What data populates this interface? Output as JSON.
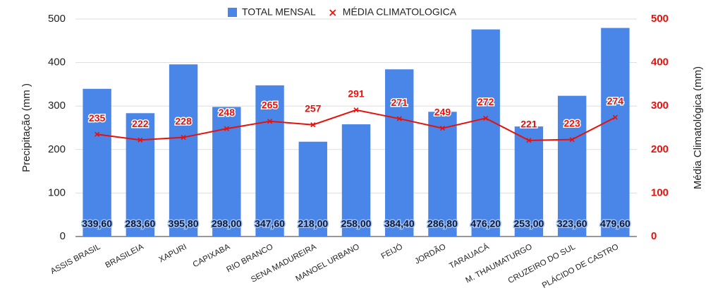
{
  "chart_data": {
    "type": "bar",
    "categories": [
      "ASSIS BRASIL",
      "BRASILEIA",
      "XAPURI",
      "CAPIXABA",
      "RIO BRANCO",
      "SENA MADUREIRA",
      "MANOEL URBANO",
      "FEIJÓ",
      "JORDÃO",
      "TARAUACÁ",
      "M. THAUMATURGO",
      "CRUZEIRO DO SUL",
      "PLÁCIDO DE CASTRO"
    ],
    "series": [
      {
        "name": "TOTAL MENSAL",
        "type": "bar",
        "color": "#4a86e8",
        "values": [
          339.6,
          283.6,
          395.8,
          298.0,
          347.6,
          218.0,
          258.0,
          384.4,
          286.8,
          476.2,
          253.0,
          323.6,
          479.6
        ],
        "value_labels": [
          "339,60",
          "283,60",
          "395,80",
          "298,00",
          "347,60",
          "218,00",
          "258,00",
          "384,40",
          "286,80",
          "476,20",
          "253,00",
          "323,60",
          "479,60"
        ]
      },
      {
        "name": "MÉDIA CLIMATOLOGICA",
        "type": "line",
        "axis": "y2",
        "color": "#e8100a",
        "values": [
          235,
          222,
          228,
          248,
          265,
          257,
          291,
          271,
          249,
          272,
          221,
          223,
          274
        ]
      }
    ],
    "ylabel": "Precipitação (mm )",
    "y2label": "Média Climatológica (mm)",
    "ylim": [
      0,
      500
    ],
    "yticks": [
      0,
      100,
      200,
      300,
      400,
      500
    ],
    "y2lim": [
      0,
      500
    ],
    "y2ticks": [
      0,
      100,
      200,
      300,
      400,
      500
    ],
    "grid": true,
    "legend": "top"
  }
}
